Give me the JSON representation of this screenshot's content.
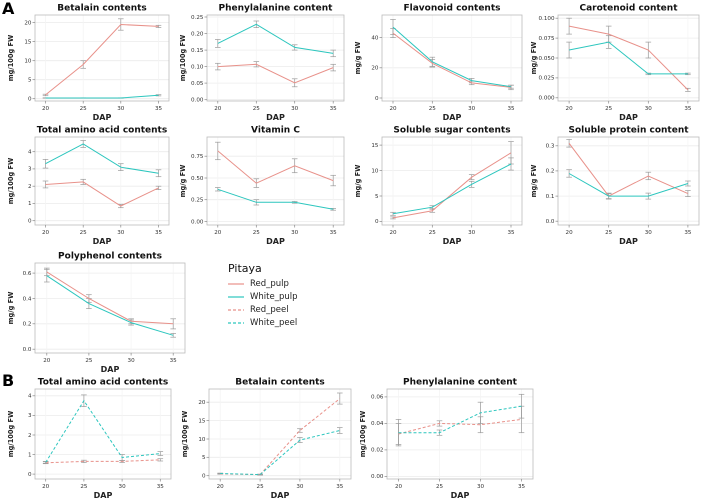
{
  "figure": {
    "panel_a_label": "A",
    "panel_b_label": "B"
  },
  "colors": {
    "red_line": "#E8918A",
    "cyan_line": "#2CC6BE",
    "error_bar": "#9A9A9A",
    "grid": "#ECECEC",
    "panel_border": "#BBBBBB"
  },
  "legend": {
    "title": "Pitaya",
    "entries": [
      {
        "label": "Red_pulp",
        "color": "#E8918A",
        "dash": "solid"
      },
      {
        "label": "White_pulp",
        "color": "#2CC6BE",
        "dash": "solid"
      },
      {
        "label": "Red_peel",
        "color": "#E8918A",
        "dash": "dashed"
      },
      {
        "label": "White_peel",
        "color": "#2CC6BE",
        "dash": "dashed"
      }
    ]
  },
  "chart_data": [
    {
      "id": "betalain-a",
      "type": "line",
      "title": "Betalain contents",
      "xlabel": "DAP",
      "ylabel": "mg/100g FW",
      "x": [
        20,
        25,
        30,
        35
      ],
      "x_tick_labels": [
        "20",
        "25",
        "30",
        "35"
      ],
      "y_ticks": [
        0,
        5,
        10,
        15,
        20
      ],
      "y_tick_labels": [
        "0",
        "5",
        "10",
        "15",
        "20"
      ],
      "ylim": [
        -0.6,
        22
      ],
      "grid": true,
      "series": [
        {
          "name": "Red_pulp",
          "color": "#E8918A",
          "dash": "solid",
          "values": [
            1.0,
            9.0,
            19.5,
            19.0
          ],
          "errors": [
            0.2,
            1.0,
            1.5,
            0.3
          ]
        },
        {
          "name": "White_pulp",
          "color": "#2CC6BE",
          "dash": "solid",
          "values": [
            0.2,
            0.2,
            0.2,
            0.9
          ],
          "errors": [
            0.05,
            0.05,
            0.05,
            0.15
          ]
        }
      ]
    },
    {
      "id": "phenylalanine-a",
      "type": "line",
      "title": "Phenylalanine content",
      "xlabel": "DAP",
      "ylabel": "mg/100g FW",
      "x": [
        20,
        25,
        30,
        35
      ],
      "x_tick_labels": [
        "20",
        "25",
        "30",
        "35"
      ],
      "y_ticks": [
        0,
        0.05,
        0.1,
        0.15,
        0.2,
        0.25
      ],
      "y_tick_labels": [
        "0.00",
        "0.05",
        "0.10",
        "0.15",
        "0.20",
        "0.25"
      ],
      "ylim": [
        -0.004,
        0.256
      ],
      "grid": true,
      "series": [
        {
          "name": "Red_pulp",
          "color": "#E8918A",
          "dash": "solid",
          "values": [
            0.1,
            0.107,
            0.051,
            0.097
          ],
          "errors": [
            0.01,
            0.008,
            0.012,
            0.01
          ]
        },
        {
          "name": "White_pulp",
          "color": "#2CC6BE",
          "dash": "solid",
          "values": [
            0.17,
            0.228,
            0.158,
            0.14
          ],
          "errors": [
            0.012,
            0.01,
            0.008,
            0.01
          ]
        }
      ]
    },
    {
      "id": "flavonoid-a",
      "type": "line",
      "title": "Flavonoid contents",
      "xlabel": "DAP",
      "ylabel": "mg/g FW",
      "x": [
        20,
        25,
        30,
        35
      ],
      "x_tick_labels": [
        "20",
        "25",
        "30",
        "35"
      ],
      "y_ticks": [
        0,
        20,
        40
      ],
      "y_tick_labels": [
        "0",
        "20",
        "40"
      ],
      "ylim": [
        -2,
        55
      ],
      "grid": true,
      "series": [
        {
          "name": "Red_pulp",
          "color": "#E8918A",
          "dash": "solid",
          "values": [
            43,
            23,
            10,
            7
          ],
          "errors": [
            3,
            2.5,
            1.2,
            1.5
          ]
        },
        {
          "name": "White_pulp",
          "color": "#2CC6BE",
          "dash": "solid",
          "values": [
            47,
            24,
            11.5,
            7.5
          ],
          "errors": [
            5,
            3,
            1.5,
            1
          ]
        }
      ]
    },
    {
      "id": "carotenoid-a",
      "type": "line",
      "title": "Carotenoid content",
      "xlabel": "DAP",
      "ylabel": "mg/g FW",
      "x": [
        20,
        25,
        30,
        35
      ],
      "x_tick_labels": [
        "20",
        "25",
        "30",
        "35"
      ],
      "y_ticks": [
        0,
        0.025,
        0.05,
        0.075,
        0.1
      ],
      "y_tick_labels": [
        "0.000",
        "0.025",
        "0.050",
        "0.075",
        "0.100"
      ],
      "ylim": [
        -0.004,
        0.104
      ],
      "grid": true,
      "series": [
        {
          "name": "Red_pulp",
          "color": "#E8918A",
          "dash": "solid",
          "values": [
            0.09,
            0.08,
            0.06,
            0.01
          ],
          "errors": [
            0.01,
            0.01,
            0.01,
            0.002
          ]
        },
        {
          "name": "White_pulp",
          "color": "#2CC6BE",
          "dash": "solid",
          "values": [
            0.06,
            0.07,
            0.03,
            0.03
          ],
          "errors": [
            0.01,
            0.008,
            0.001,
            0.001
          ]
        }
      ]
    },
    {
      "id": "total-amino-a",
      "type": "line",
      "title": "Total amino acid contents",
      "xlabel": "DAP",
      "ylabel": "mg/100g FW",
      "x": [
        20,
        25,
        30,
        35
      ],
      "x_tick_labels": [
        "20",
        "25",
        "30",
        "35"
      ],
      "y_ticks": [
        0,
        1,
        2,
        3,
        4
      ],
      "y_tick_labels": [
        "0",
        "1",
        "2",
        "3",
        "4"
      ],
      "ylim": [
        -0.25,
        4.85
      ],
      "grid": true,
      "series": [
        {
          "name": "Red_pulp",
          "color": "#E8918A",
          "dash": "solid",
          "values": [
            2.1,
            2.25,
            0.85,
            1.9
          ],
          "errors": [
            0.2,
            0.15,
            0.1,
            0.1
          ]
        },
        {
          "name": "White_pulp",
          "color": "#2CC6BE",
          "dash": "solid",
          "values": [
            3.3,
            4.45,
            3.1,
            2.75
          ],
          "errors": [
            0.25,
            0.2,
            0.2,
            0.2
          ]
        }
      ]
    },
    {
      "id": "vitamin-c-a",
      "type": "line",
      "title": "Vitamin C",
      "xlabel": "DAP",
      "ylabel": "mg/g FW",
      "x": [
        20,
        25,
        30,
        35
      ],
      "x_tick_labels": [
        "20",
        "25",
        "30",
        "35"
      ],
      "y_ticks": [
        0,
        0.25,
        0.5,
        0.75
      ],
      "y_tick_labels": [
        "0.00",
        "0.25",
        "0.50",
        "0.75"
      ],
      "ylim": [
        -0.04,
        0.97
      ],
      "grid": true,
      "series": [
        {
          "name": "Red_pulp",
          "color": "#E8918A",
          "dash": "solid",
          "values": [
            0.81,
            0.44,
            0.64,
            0.47
          ],
          "errors": [
            0.1,
            0.05,
            0.08,
            0.06
          ]
        },
        {
          "name": "White_pulp",
          "color": "#2CC6BE",
          "dash": "solid",
          "values": [
            0.37,
            0.22,
            0.22,
            0.14
          ],
          "errors": [
            0.02,
            0.03,
            0.01,
            0.01
          ]
        }
      ]
    },
    {
      "id": "soluble-sugar-a",
      "type": "line",
      "title": "Soluble sugar contents",
      "xlabel": "DAP",
      "ylabel": "mg/g FW",
      "x": [
        20,
        25,
        30,
        35
      ],
      "x_tick_labels": [
        "20",
        "25",
        "30",
        "35"
      ],
      "y_ticks": [
        0,
        5,
        10,
        15
      ],
      "y_tick_labels": [
        "0",
        "5",
        "10",
        "15"
      ],
      "ylim": [
        -0.7,
        16.6
      ],
      "grid": true,
      "series": [
        {
          "name": "Red_pulp",
          "color": "#E8918A",
          "dash": "solid",
          "values": [
            0.7,
            2.1,
            8.7,
            13.5
          ],
          "errors": [
            0.2,
            0.3,
            0.5,
            2.2
          ]
        },
        {
          "name": "White_pulp",
          "color": "#2CC6BE",
          "dash": "solid",
          "values": [
            1.5,
            2.8,
            7.3,
            11.3
          ],
          "errors": [
            0.3,
            0.3,
            0.6,
            1.2
          ]
        }
      ]
    },
    {
      "id": "soluble-protein-a",
      "type": "line",
      "title": "Soluble protein content",
      "xlabel": "DAP",
      "ylabel": "mg/g FW",
      "x": [
        20,
        25,
        30,
        35
      ],
      "x_tick_labels": [
        "20",
        "25",
        "30",
        "35"
      ],
      "y_ticks": [
        0,
        0.1,
        0.2,
        0.3
      ],
      "y_tick_labels": [
        "0.0",
        "0.1",
        "0.2",
        "0.3"
      ],
      "ylim": [
        -0.015,
        0.335
      ],
      "grid": true,
      "series": [
        {
          "name": "Red_pulp",
          "color": "#E8918A",
          "dash": "solid",
          "values": [
            0.31,
            0.1,
            0.18,
            0.11
          ],
          "errors": [
            0.015,
            0.012,
            0.015,
            0.012
          ]
        },
        {
          "name": "White_pulp",
          "color": "#2CC6BE",
          "dash": "solid",
          "values": [
            0.19,
            0.1,
            0.1,
            0.15
          ],
          "errors": [
            0.015,
            0.01,
            0.012,
            0.01
          ]
        }
      ]
    },
    {
      "id": "polyphenol-a",
      "type": "line",
      "title": "Polyphenol contents",
      "xlabel": "DAP",
      "ylabel": "mg/g FW",
      "x": [
        20,
        25,
        30,
        35
      ],
      "x_tick_labels": [
        "20",
        "25",
        "30",
        "35"
      ],
      "y_ticks": [
        0,
        0.2,
        0.4,
        0.6
      ],
      "y_tick_labels": [
        "0.0",
        "0.2",
        "0.4",
        "0.6"
      ],
      "ylim": [
        -0.03,
        0.68
      ],
      "grid": true,
      "series": [
        {
          "name": "Red_pulp",
          "color": "#E8918A",
          "dash": "solid",
          "values": [
            0.61,
            0.4,
            0.22,
            0.2
          ],
          "errors": [
            0.03,
            0.03,
            0.02,
            0.04
          ]
        },
        {
          "name": "White_pulp",
          "color": "#2CC6BE",
          "dash": "solid",
          "values": [
            0.58,
            0.36,
            0.21,
            0.11
          ],
          "errors": [
            0.05,
            0.04,
            0.02,
            0.015
          ]
        }
      ]
    },
    {
      "id": "total-amino-b",
      "type": "line",
      "title": "Total amino acid contents",
      "xlabel": "DAP",
      "ylabel": "mg/100g FW",
      "x": [
        20,
        25,
        30,
        35
      ],
      "x_tick_labels": [
        "20",
        "25",
        "30",
        "35"
      ],
      "y_ticks": [
        0,
        1,
        2,
        3,
        4
      ],
      "y_tick_labels": [
        "0",
        "1",
        "2",
        "3",
        "4"
      ],
      "ylim": [
        -0.25,
        4.35
      ],
      "grid": true,
      "series": [
        {
          "name": "Red_peel",
          "color": "#E8918A",
          "dash": "dashed",
          "values": [
            0.58,
            0.65,
            0.65,
            0.73
          ],
          "errors": [
            0.05,
            0.06,
            0.05,
            0.06
          ]
        },
        {
          "name": "White_peel",
          "color": "#2CC6BE",
          "dash": "dashed",
          "values": [
            0.6,
            3.75,
            0.85,
            1.05
          ],
          "errors": [
            0.05,
            0.3,
            0.15,
            0.1
          ]
        }
      ]
    },
    {
      "id": "betalain-b",
      "type": "line",
      "title": "Betalain contents",
      "xlabel": "DAP",
      "ylabel": "mg/100g FW",
      "x": [
        20,
        25,
        30,
        35
      ],
      "x_tick_labels": [
        "20",
        "25",
        "30",
        "35"
      ],
      "y_ticks": [
        0,
        5,
        10,
        15,
        20
      ],
      "y_tick_labels": [
        "0",
        "5",
        "10",
        "15",
        "20"
      ],
      "ylim": [
        -0.9,
        23.6
      ],
      "grid": true,
      "series": [
        {
          "name": "Red_peel",
          "color": "#E8918A",
          "dash": "dashed",
          "values": [
            0.5,
            0.3,
            12.3,
            21.0
          ],
          "errors": [
            0.1,
            0.1,
            0.5,
            1.5
          ]
        },
        {
          "name": "White_peel",
          "color": "#2CC6BE",
          "dash": "dashed",
          "values": [
            0.6,
            0.3,
            9.7,
            12.3
          ],
          "errors": [
            0.1,
            0.1,
            0.7,
            0.8
          ]
        }
      ]
    },
    {
      "id": "phenylalanine-b",
      "type": "line",
      "title": "Phenylalanine content",
      "xlabel": "DAP",
      "ylabel": "mg/100g FW",
      "x": [
        20,
        25,
        30,
        35
      ],
      "x_tick_labels": [
        "20",
        "25",
        "30",
        "35"
      ],
      "y_ticks": [
        0,
        0.02,
        0.04,
        0.06
      ],
      "y_tick_labels": [
        "0.00",
        "0.02",
        "0.04",
        "0.06"
      ],
      "ylim": [
        -0.002,
        0.066
      ],
      "grid": true,
      "series": [
        {
          "name": "Red_peel",
          "color": "#E8918A",
          "dash": "dashed",
          "values": [
            0.032,
            0.04,
            0.039,
            0.043
          ],
          "errors": [
            0.008,
            0.002,
            0.006,
            0.01
          ]
        },
        {
          "name": "White_peel",
          "color": "#2CC6BE",
          "dash": "dashed",
          "values": [
            0.033,
            0.033,
            0.048,
            0.053
          ],
          "errors": [
            0.01,
            0.002,
            0.008,
            0.009
          ]
        }
      ]
    }
  ]
}
